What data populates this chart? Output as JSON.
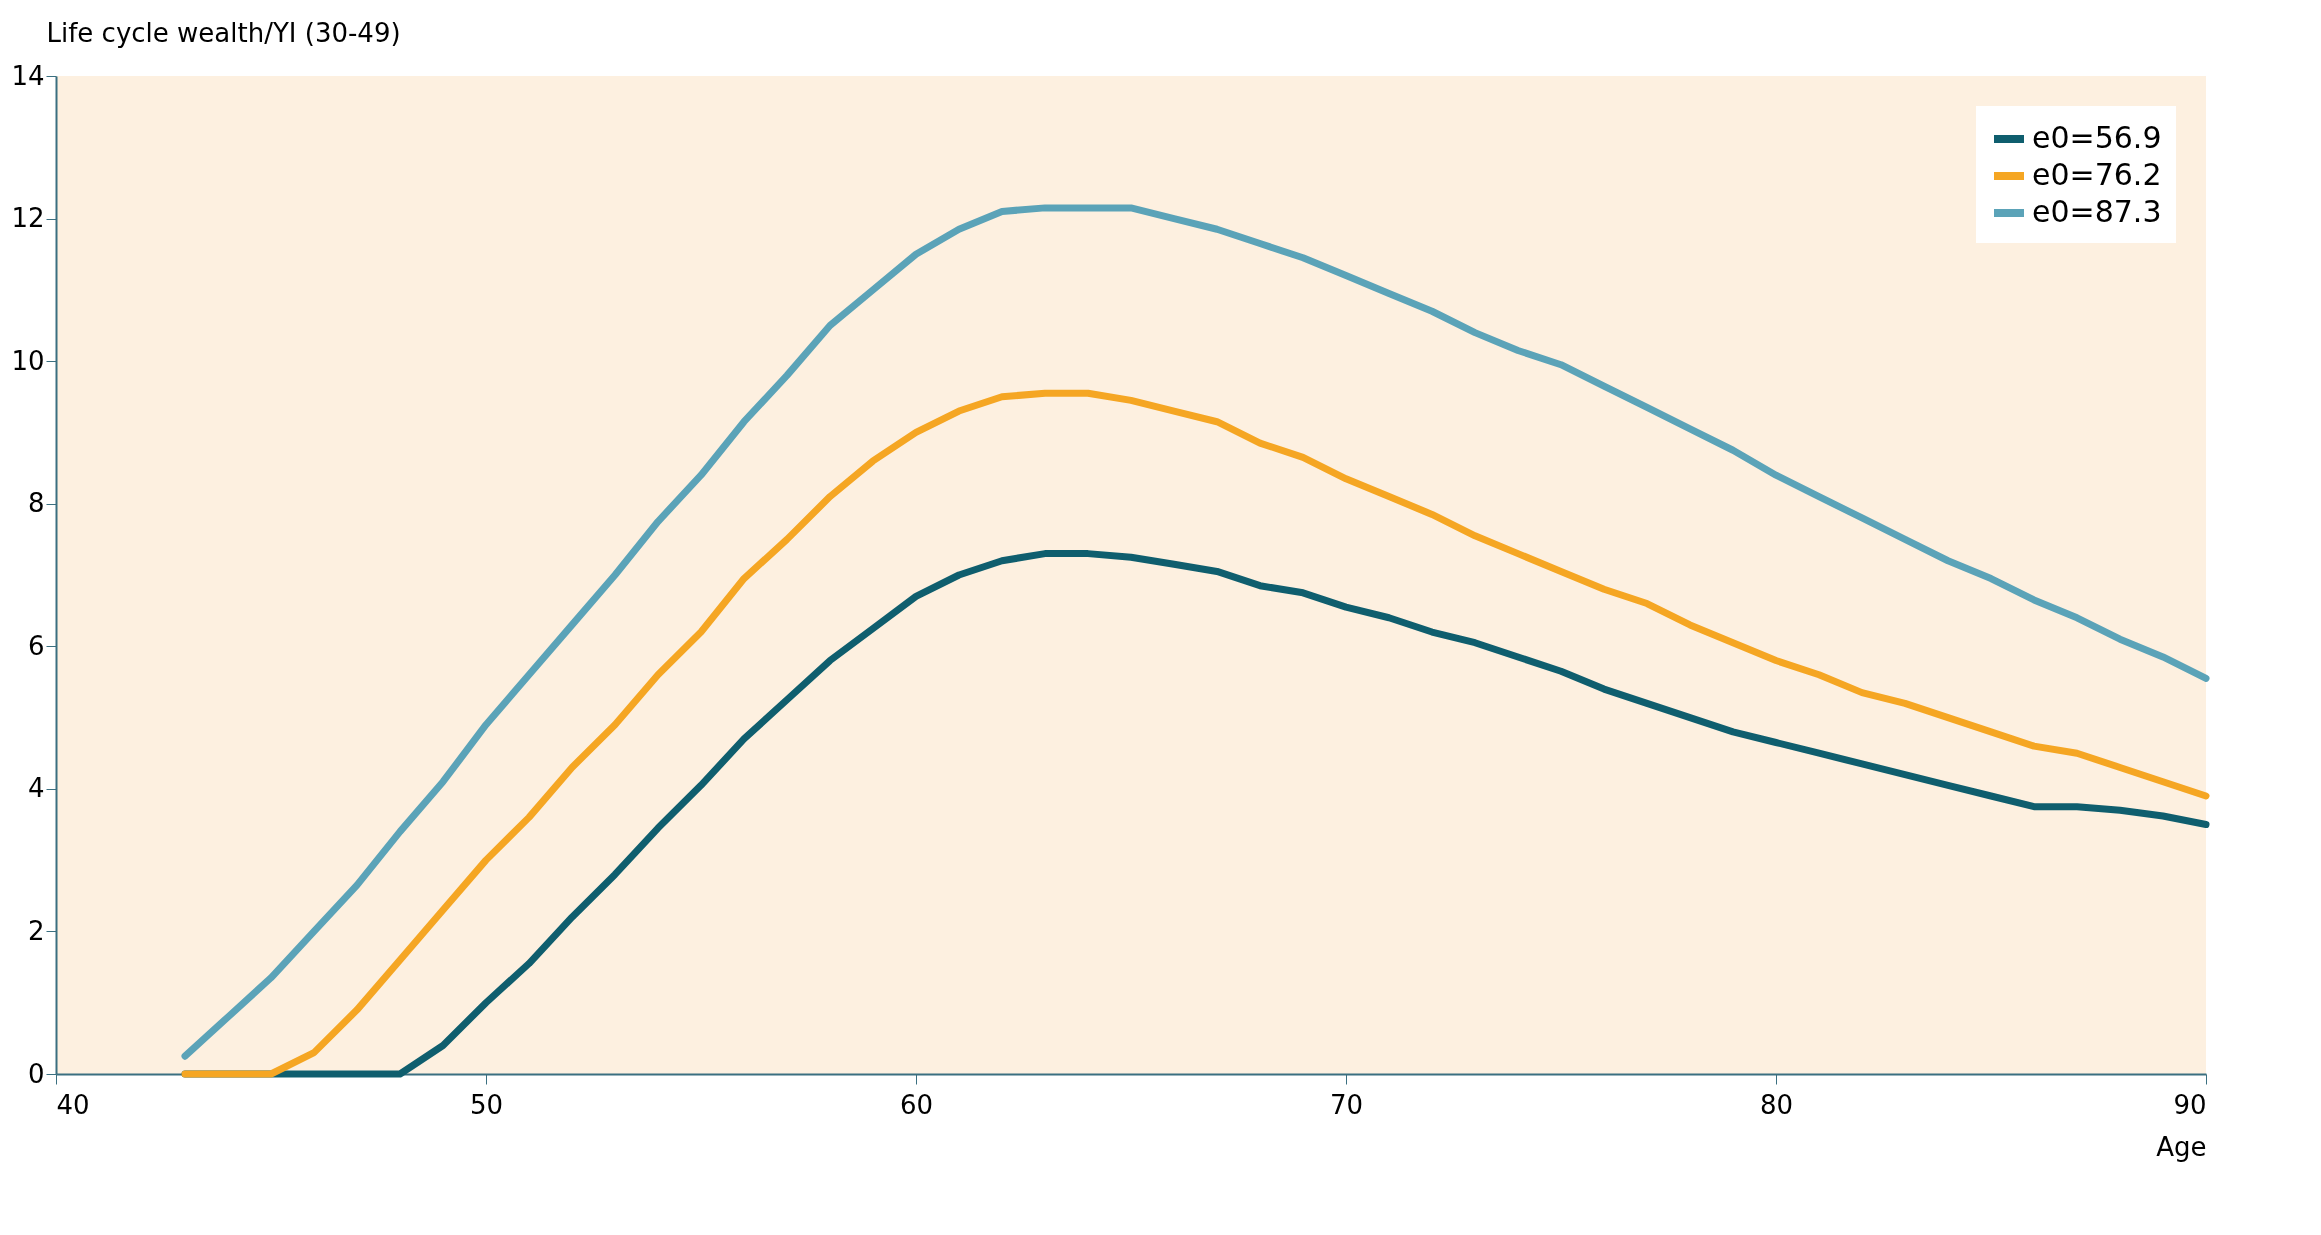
{
  "chart_data": {
    "type": "line",
    "xlabel": "Age",
    "ylabel": "Life cycle wealth/YI (30-49)",
    "x": [
      43,
      44,
      45,
      46,
      47,
      48,
      49,
      50,
      51,
      52,
      53,
      54,
      55,
      56,
      57,
      58,
      59,
      60,
      61,
      62,
      63,
      64,
      65,
      66,
      67,
      68,
      69,
      70,
      71,
      72,
      73,
      74,
      75,
      76,
      77,
      78,
      79,
      80,
      81,
      82,
      83,
      84,
      85,
      86,
      87,
      88,
      89,
      90
    ],
    "series": [
      {
        "name": "e0=56.9",
        "color": "#0f5e6e",
        "values": [
          0,
          0,
          0,
          0,
          0,
          0,
          0.4,
          1.0,
          1.55,
          2.2,
          2.8,
          3.45,
          4.05,
          4.7,
          5.25,
          5.8,
          6.25,
          6.7,
          7.0,
          7.2,
          7.3,
          7.3,
          7.25,
          7.15,
          7.05,
          6.85,
          6.75,
          6.55,
          6.4,
          6.2,
          6.05,
          5.85,
          5.65,
          5.4,
          5.2,
          5.0,
          4.8,
          4.65,
          4.5,
          4.35,
          4.2,
          4.05,
          3.9,
          3.75,
          3.75,
          3.7,
          3.62,
          3.5
        ]
      },
      {
        "name": "e0=76.2",
        "color": "#f5a623",
        "values": [
          0,
          0,
          0,
          0.3,
          0.9,
          1.6,
          2.3,
          3.0,
          3.6,
          4.3,
          4.9,
          5.6,
          6.2,
          6.95,
          7.5,
          8.1,
          8.6,
          9.0,
          9.3,
          9.5,
          9.55,
          9.55,
          9.45,
          9.3,
          9.15,
          8.85,
          8.65,
          8.35,
          8.1,
          7.85,
          7.55,
          7.3,
          7.05,
          6.8,
          6.6,
          6.3,
          6.05,
          5.8,
          5.6,
          5.35,
          5.2,
          5.0,
          4.8,
          4.6,
          4.5,
          4.3,
          4.1,
          3.9
        ]
      },
      {
        "name": "e0=87.3",
        "color": "#5ba3b8",
        "values": [
          0.25,
          0.8,
          1.35,
          2.0,
          2.65,
          3.4,
          4.1,
          4.9,
          5.6,
          6.3,
          7.0,
          7.75,
          8.4,
          9.15,
          9.8,
          10.5,
          11.0,
          11.5,
          11.85,
          12.1,
          12.15,
          12.15,
          12.15,
          12.0,
          11.85,
          11.65,
          11.45,
          11.2,
          10.95,
          10.7,
          10.4,
          10.15,
          9.95,
          9.65,
          9.35,
          9.05,
          8.75,
          8.4,
          8.1,
          7.8,
          7.5,
          7.2,
          6.95,
          6.65,
          6.4,
          6.1,
          5.85,
          5.55
        ]
      }
    ],
    "xlim": [
      40,
      90
    ],
    "xticks": [
      40,
      50,
      60,
      70,
      80,
      90
    ],
    "ylim": [
      0,
      14
    ],
    "yticks": [
      0,
      2,
      4,
      6,
      8,
      10,
      12,
      14
    ],
    "grid": false,
    "legend": "top right",
    "marker": "none",
    "line_style": "solid"
  }
}
